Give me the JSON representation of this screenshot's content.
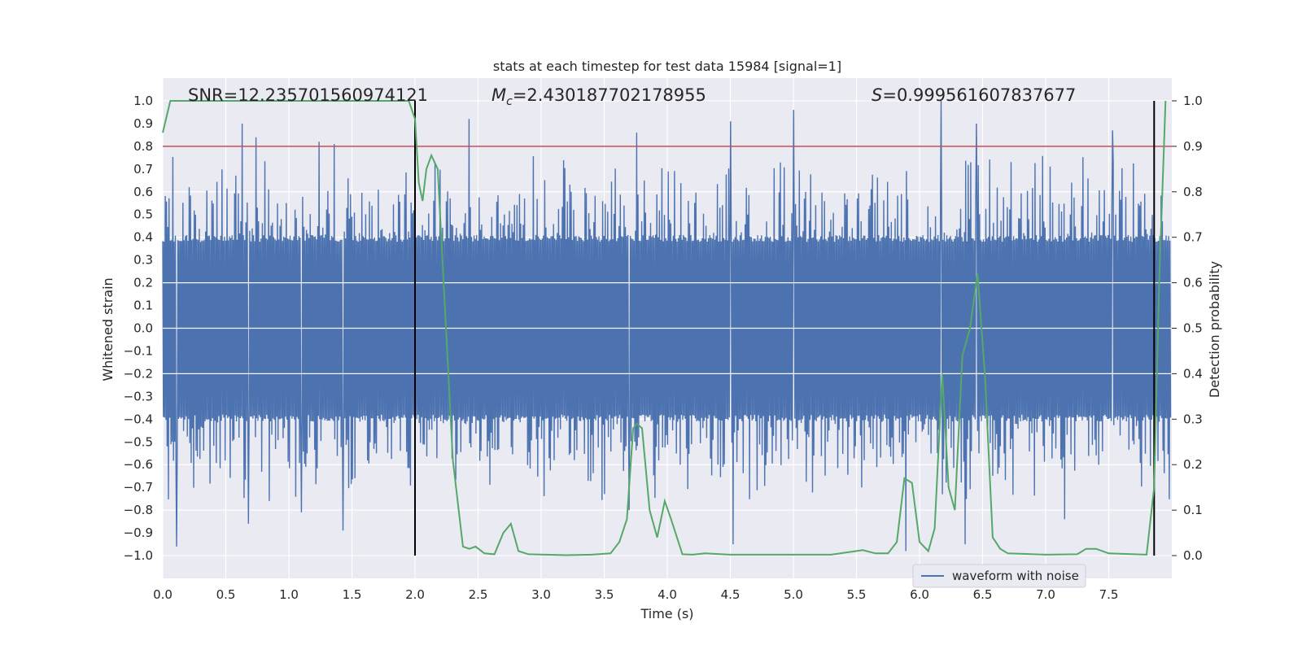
{
  "chart_data": {
    "type": "line",
    "title": "stats at each timestep for test data 15984 [signal=1]",
    "xlabel": "Time (s)",
    "ylabel": "Whitened strain",
    "y2label": "Detection probability",
    "xlim": [
      0,
      8
    ],
    "ylim": [
      -1.1,
      1.1
    ],
    "y2lim": [
      -0.05,
      1.05
    ],
    "x_ticks": [
      0.0,
      0.5,
      1.0,
      1.5,
      2.0,
      2.5,
      3.0,
      3.5,
      4.0,
      4.5,
      5.0,
      5.5,
      6.0,
      6.5,
      7.0,
      7.5
    ],
    "x_tick_labels": [
      "0.0",
      "0.5",
      "1.0",
      "1.5",
      "2.0",
      "2.5",
      "3.0",
      "3.5",
      "4.0",
      "4.5",
      "5.0",
      "5.5",
      "6.0",
      "6.5",
      "7.0",
      "7.5"
    ],
    "y_ticks": [
      -1.0,
      -0.9,
      -0.8,
      -0.7,
      -0.6,
      -0.5,
      -0.4,
      -0.3,
      -0.2,
      -0.1,
      0.0,
      0.1,
      0.2,
      0.3,
      0.4,
      0.5,
      0.6,
      0.7,
      0.8,
      0.9,
      1.0
    ],
    "y_tick_labels": [
      "−1.0",
      "−0.9",
      "−0.8",
      "−0.7",
      "−0.6",
      "−0.5",
      "−0.4",
      "−0.3",
      "−0.2",
      "−0.1",
      "0.0",
      "0.1",
      "0.2",
      "0.3",
      "0.4",
      "0.5",
      "0.6",
      "0.7",
      "0.8",
      "0.9",
      "1.0"
    ],
    "y2_ticks": [
      0.0,
      0.1,
      0.2,
      0.3,
      0.4,
      0.5,
      0.6,
      0.7,
      0.8,
      0.9,
      1.0
    ],
    "y2_tick_labels": [
      "0.0",
      "0.1",
      "0.2",
      "0.3",
      "0.4",
      "0.5",
      "0.6",
      "0.7",
      "0.8",
      "0.9",
      "1.0"
    ],
    "annotations": {
      "snr": "SNR=12.235701560974121",
      "mc_symbol": "M",
      "mc_sub": "c",
      "mc_value": "=2.430187702178955",
      "s_symbol": "S",
      "s_value": "=0.999561607837677"
    },
    "threshold_line": {
      "y2": 0.9,
      "color": "#c44e52"
    },
    "vertical_lines": [
      2.0,
      7.86
    ],
    "legend": {
      "label": "waveform with noise",
      "position": "lower-right"
    },
    "waveform": {
      "name": "waveform with noise",
      "color": "#4c72b0",
      "core_band": [
        -0.38,
        0.38
      ],
      "typical_peak": 0.62,
      "seed": 15984,
      "n_samples": 1600,
      "spikes": [
        {
          "x": 0.63,
          "y": 0.9
        },
        {
          "x": 0.74,
          "y": 0.84
        },
        {
          "x": 1.24,
          "y": 0.82
        },
        {
          "x": 1.36,
          "y": 0.81
        },
        {
          "x": 2.43,
          "y": 0.92
        },
        {
          "x": 3.76,
          "y": 0.86
        },
        {
          "x": 4.5,
          "y": 0.91
        },
        {
          "x": 5.0,
          "y": 0.96
        },
        {
          "x": 6.17,
          "y": 1.0
        },
        {
          "x": 6.45,
          "y": 0.9
        },
        {
          "x": 7.53,
          "y": 0.87
        },
        {
          "x": 0.11,
          "y": -0.96
        },
        {
          "x": 0.68,
          "y": -0.86
        },
        {
          "x": 1.43,
          "y": -0.89
        },
        {
          "x": 4.52,
          "y": -0.95
        },
        {
          "x": 5.89,
          "y": -0.98
        },
        {
          "x": 6.36,
          "y": -0.95
        },
        {
          "x": 7.15,
          "y": -0.84
        },
        {
          "x": 1.1,
          "y": -0.81
        },
        {
          "x": 3.7,
          "y": -0.8
        }
      ]
    },
    "probability": {
      "name": "detection probability",
      "color": "#55a868",
      "x": [
        0.0,
        0.06,
        1.95,
        2.0,
        2.03,
        2.06,
        2.09,
        2.13,
        2.18,
        2.3,
        2.38,
        2.43,
        2.48,
        2.55,
        2.63,
        2.7,
        2.76,
        2.82,
        2.9,
        3.2,
        3.4,
        3.55,
        3.62,
        3.68,
        3.73,
        3.76,
        3.8,
        3.86,
        3.92,
        3.98,
        4.03,
        4.12,
        4.2,
        4.3,
        4.5,
        4.8,
        5.0,
        5.3,
        5.55,
        5.65,
        5.75,
        5.82,
        5.88,
        5.94,
        6.0,
        6.07,
        6.12,
        6.18,
        6.23,
        6.28,
        6.34,
        6.4,
        6.46,
        6.52,
        6.58,
        6.64,
        6.7,
        7.0,
        7.25,
        7.32,
        7.4,
        7.5,
        7.8,
        7.86,
        7.9,
        7.95
      ],
      "y": [
        0.93,
        1.0,
        1.0,
        0.96,
        0.82,
        0.78,
        0.85,
        0.88,
        0.85,
        0.21,
        0.02,
        0.015,
        0.02,
        0.005,
        0.003,
        0.05,
        0.07,
        0.01,
        0.003,
        0.001,
        0.002,
        0.005,
        0.03,
        0.08,
        0.28,
        0.29,
        0.28,
        0.1,
        0.04,
        0.12,
        0.08,
        0.003,
        0.002,
        0.005,
        0.002,
        0.002,
        0.002,
        0.002,
        0.012,
        0.005,
        0.005,
        0.03,
        0.17,
        0.16,
        0.03,
        0.01,
        0.06,
        0.4,
        0.15,
        0.1,
        0.44,
        0.5,
        0.62,
        0.39,
        0.04,
        0.015,
        0.005,
        0.002,
        0.003,
        0.015,
        0.015,
        0.005,
        0.002,
        0.15,
        0.6,
        1.0
      ]
    }
  }
}
